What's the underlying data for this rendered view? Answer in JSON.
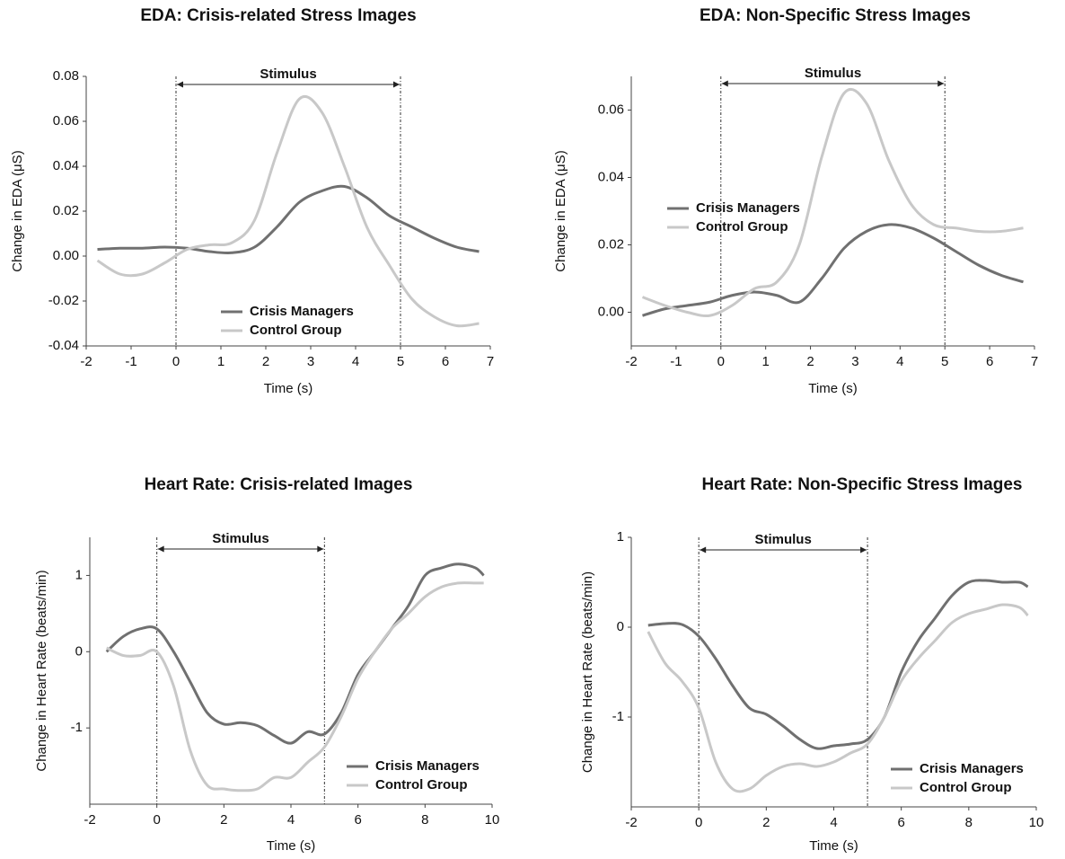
{
  "chart_data": [
    {
      "type": "line",
      "title": "EDA: Crisis-related Stress Images",
      "x_label": "Time (s)",
      "y_label": "Change in EDA (μS)",
      "x": [
        -1.75,
        -1.25,
        -0.75,
        -0.25,
        0.25,
        0.75,
        1.25,
        1.75,
        2.25,
        2.75,
        3.25,
        3.75,
        4.25,
        4.75,
        5.25,
        5.75,
        6.25,
        6.75
      ],
      "series": [
        {
          "name": "Crisis Managers",
          "color": "#707070",
          "values": [
            0.003,
            0.0035,
            0.0035,
            0.004,
            0.0035,
            0.002,
            0.0015,
            0.004,
            0.013,
            0.024,
            0.029,
            0.031,
            0.026,
            0.018,
            0.013,
            0.008,
            0.004,
            0.002
          ]
        },
        {
          "name": "Control Group",
          "color": "#c8c8c8",
          "values": [
            -0.002,
            -0.008,
            -0.008,
            -0.003,
            0.003,
            0.005,
            0.006,
            0.016,
            0.046,
            0.07,
            0.064,
            0.04,
            0.013,
            -0.004,
            -0.019,
            -0.027,
            -0.031,
            -0.03
          ]
        }
      ],
      "xlim": [
        -2,
        7
      ],
      "xticks": [
        -2,
        -1,
        0,
        1,
        2,
        3,
        4,
        5,
        6,
        7
      ],
      "ylim": [
        -0.04,
        0.08
      ],
      "yticks": [
        {
          "value": -0.04,
          "label": "-0.04"
        },
        -0.02,
        {
          "value": 0,
          "label": "0.00"
        },
        0.02,
        0.04,
        0.06,
        0.08
      ],
      "stimulus": {
        "label": "Stimulus",
        "start": 0,
        "end": 5
      },
      "legend": "lower center"
    },
    {
      "type": "line",
      "title": "EDA: Non-Specific Stress Images",
      "x_label": "Time (s)",
      "y_label": "Change in EDA (μS)",
      "x": [
        -1.75,
        -1.25,
        -0.75,
        -0.25,
        0.25,
        0.75,
        1.25,
        1.75,
        2.25,
        2.75,
        3.25,
        3.75,
        4.25,
        4.75,
        5.25,
        5.75,
        6.25,
        6.75
      ],
      "series": [
        {
          "name": "Crisis Managers",
          "color": "#707070",
          "values": [
            -0.001,
            0.001,
            0.002,
            0.003,
            0.005,
            0.006,
            0.005,
            0.003,
            0.01,
            0.019,
            0.024,
            0.026,
            0.025,
            0.022,
            0.018,
            0.014,
            0.011,
            0.009
          ]
        },
        {
          "name": "Control Group",
          "color": "#c8c8c8",
          "values": [
            0.0045,
            0.002,
            0,
            -0.001,
            0.002,
            0.007,
            0.009,
            0.02,
            0.046,
            0.065,
            0.062,
            0.045,
            0.032,
            0.026,
            0.025,
            0.024,
            0.024,
            0.025
          ]
        }
      ],
      "xlim": [
        -2,
        7
      ],
      "xticks": [
        -2,
        -1,
        0,
        1,
        2,
        3,
        4,
        5,
        6,
        7
      ],
      "ylim": [
        -0.01,
        0.07
      ],
      "yticks": [
        {
          "value": 0,
          "label": "0.00"
        },
        0.02,
        0.04,
        0.06
      ],
      "stimulus": {
        "label": "Stimulus",
        "start": 0,
        "end": 5
      },
      "legend": "center left"
    },
    {
      "type": "line",
      "title": "Heart Rate: Crisis-related Images",
      "x_label": "Time (s)",
      "y_label": "Change in Heart Rate (beats/min)",
      "x": [
        -1.5,
        -1,
        -0.5,
        0,
        0.5,
        1,
        1.5,
        2,
        2.5,
        3,
        3.5,
        4,
        4.5,
        5,
        5.5,
        6,
        6.5,
        7,
        7.5,
        8,
        8.5,
        9,
        9.5,
        9.75
      ],
      "series": [
        {
          "name": "Crisis Managers",
          "color": "#707070",
          "values": [
            0,
            0.2,
            0.3,
            0.3,
            0,
            -0.4,
            -0.8,
            -0.95,
            -0.93,
            -0.97,
            -1.1,
            -1.2,
            -1.05,
            -1.08,
            -0.8,
            -0.3,
            0,
            0.3,
            0.6,
            1.0,
            1.1,
            1.15,
            1.1,
            1.0
          ]
        },
        {
          "name": "Control Group",
          "color": "#c8c8c8",
          "values": [
            0.05,
            -0.05,
            -0.05,
            0,
            -0.45,
            -1.3,
            -1.75,
            -1.8,
            -1.82,
            -1.8,
            -1.65,
            -1.65,
            -1.45,
            -1.25,
            -0.85,
            -0.35,
            0,
            0.3,
            0.5,
            0.72,
            0.85,
            0.9,
            0.9,
            0.9
          ]
        }
      ],
      "xlim": [
        -2,
        10
      ],
      "xticks": [
        -2,
        0,
        2,
        4,
        6,
        8,
        10
      ],
      "ylim": [
        -2,
        1.5
      ],
      "yticks": [
        -1,
        0,
        1
      ],
      "stimulus": {
        "label": "Stimulus",
        "start": 0,
        "end": 5
      },
      "legend": "lower right"
    },
    {
      "type": "line",
      "title": "Heart Rate: Non-Specific Stress Images",
      "x_label": "Time (s)",
      "y_label": "Change in Heart Rate (beats/min)",
      "x": [
        -1.5,
        -1,
        -0.5,
        0,
        0.5,
        1,
        1.5,
        2,
        2.5,
        3,
        3.5,
        4,
        4.5,
        5,
        5.5,
        6,
        6.5,
        7,
        7.5,
        8,
        8.5,
        9,
        9.5,
        9.75
      ],
      "series": [
        {
          "name": "Crisis Managers",
          "color": "#707070",
          "values": [
            0.02,
            0.04,
            0.03,
            -0.1,
            -0.35,
            -0.65,
            -0.9,
            -0.97,
            -1.1,
            -1.25,
            -1.35,
            -1.32,
            -1.3,
            -1.25,
            -1.0,
            -0.5,
            -0.15,
            0.1,
            0.35,
            0.5,
            0.52,
            0.5,
            0.5,
            0.45
          ]
        },
        {
          "name": "Control Group",
          "color": "#c8c8c8",
          "values": [
            -0.05,
            -0.4,
            -0.6,
            -0.9,
            -1.5,
            -1.8,
            -1.8,
            -1.65,
            -1.55,
            -1.52,
            -1.55,
            -1.5,
            -1.4,
            -1.3,
            -1.0,
            -0.6,
            -0.35,
            -0.15,
            0.05,
            0.15,
            0.2,
            0.25,
            0.22,
            0.13
          ]
        }
      ],
      "xlim": [
        -2,
        10
      ],
      "xticks": [
        -2,
        0,
        2,
        4,
        6,
        8,
        10
      ],
      "ylim": [
        -2,
        1
      ],
      "yticks": [
        -1,
        0,
        1
      ],
      "stimulus": {
        "label": "Stimulus",
        "start": 0,
        "end": 5
      },
      "legend": "lower right"
    }
  ]
}
